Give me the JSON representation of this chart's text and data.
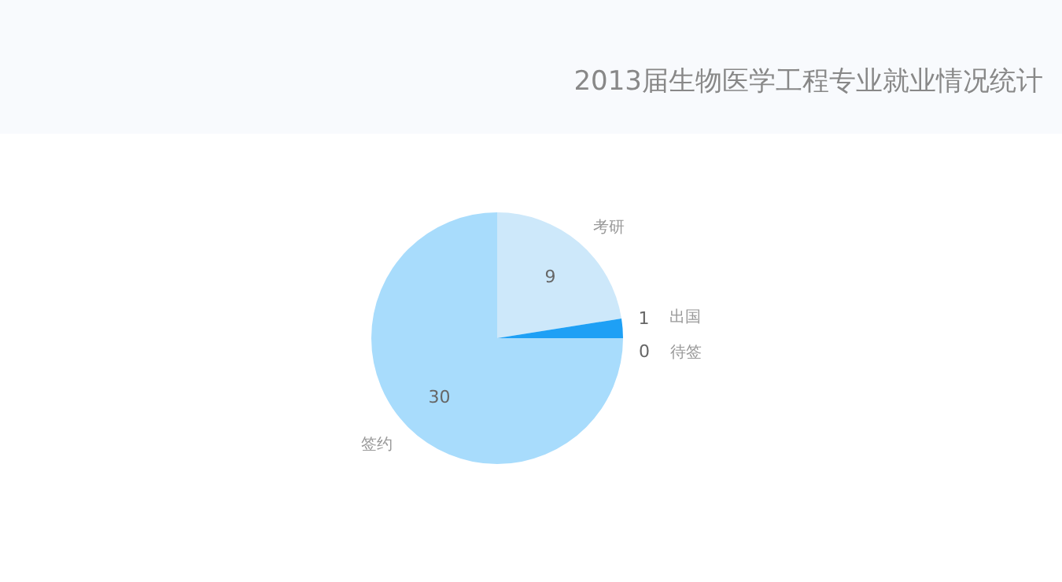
{
  "chart_data": {
    "type": "pie",
    "title": "2013届生物医学工程专业就业情况统计",
    "categories": [
      "考研",
      "出国",
      "待签",
      "签约"
    ],
    "values": [
      9,
      1,
      0,
      30
    ],
    "value_labels": [
      "9",
      "1",
      "0",
      "30"
    ],
    "colors": [
      "#cde8fa",
      "#1ea0f5",
      "#6cc3f8",
      "#a8dcfc"
    ]
  }
}
